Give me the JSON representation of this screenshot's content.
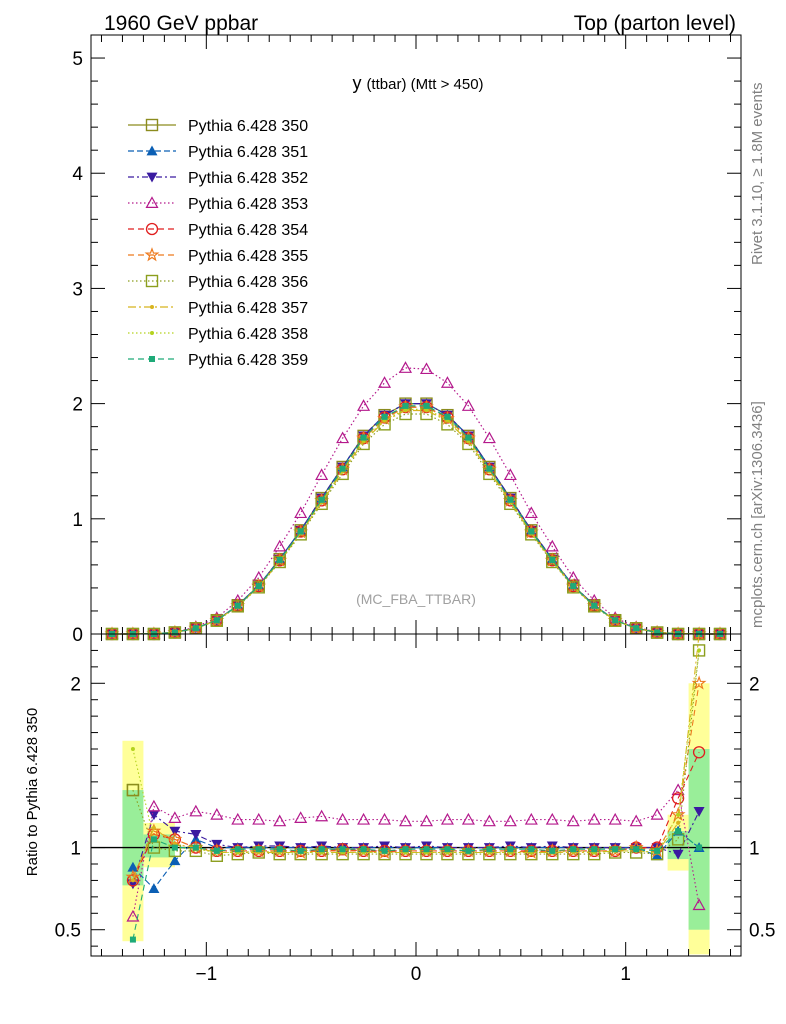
{
  "header": {
    "left": "1960 GeV ppbar",
    "right": "Top (parton level)"
  },
  "side_text": {
    "rivet": "Rivet 3.1.10, ≥ 1.8M events",
    "mcplots": "mcplots.cern.ch [arXiv:1306.3436]"
  },
  "chart_data": [
    {
      "type": "line",
      "title": "y (ttbar) (Mtt > 450)",
      "title_main": "y",
      "title_sub": "(ttbar) (Mtt > 450)",
      "watermark": "(MC_FBA_TTBAR)",
      "xlim": [
        -1.55,
        1.55
      ],
      "ylim": [
        0,
        5.2
      ],
      "y_ticks": [
        "0",
        "1",
        "2",
        "3",
        "4",
        "5"
      ],
      "x": [
        -1.45,
        -1.35,
        -1.25,
        -1.15,
        -1.05,
        -0.95,
        -0.85,
        -0.75,
        -0.65,
        -0.55,
        -0.45,
        -0.35,
        -0.25,
        -0.15,
        -0.05,
        0.05,
        0.15,
        0.25,
        0.35,
        0.45,
        0.55,
        0.65,
        0.75,
        0.85,
        0.95,
        1.05,
        1.15,
        1.25,
        1.35,
        1.45
      ],
      "series": [
        {
          "name": "Pythia 6.428 350",
          "color": "#8c8c1e",
          "dash": "",
          "marker": "square-open",
          "values": [
            0,
            0,
            0.003,
            0.013,
            0.05,
            0.12,
            0.25,
            0.42,
            0.65,
            0.9,
            1.18,
            1.45,
            1.72,
            1.9,
            2.0,
            2.0,
            1.9,
            1.72,
            1.45,
            1.18,
            0.9,
            0.65,
            0.42,
            0.25,
            0.12,
            0.05,
            0.013,
            0.003,
            0,
            0
          ]
        },
        {
          "name": "Pythia 6.428 351",
          "color": "#0b5fb4",
          "dash": "6,3",
          "marker": "triangle-up",
          "values": [
            0.001,
            0,
            0.002,
            0.012,
            0.052,
            0.12,
            0.25,
            0.42,
            0.65,
            0.9,
            1.18,
            1.45,
            1.72,
            1.9,
            2.0,
            2.0,
            1.9,
            1.72,
            1.45,
            1.18,
            0.9,
            0.65,
            0.42,
            0.25,
            0.12,
            0.05,
            0.012,
            0.004,
            0,
            0.001
          ]
        },
        {
          "name": "Pythia 6.428 352",
          "color": "#3a1aa0",
          "dash": "6,3,2,3",
          "marker": "triangle-down",
          "values": [
            0.002,
            0,
            0.003,
            0.014,
            0.054,
            0.12,
            0.25,
            0.42,
            0.65,
            0.9,
            1.18,
            1.45,
            1.72,
            1.9,
            2.0,
            2.0,
            1.9,
            1.72,
            1.45,
            1.18,
            0.9,
            0.65,
            0.42,
            0.25,
            0.12,
            0.05,
            0.012,
            0.003,
            0,
            0
          ]
        },
        {
          "name": "Pythia 6.428 353",
          "color": "#b4198c",
          "dash": "1.5,2.5",
          "marker": "triangle-open",
          "values": [
            0,
            0,
            0.004,
            0.015,
            0.062,
            0.14,
            0.29,
            0.49,
            0.76,
            1.05,
            1.38,
            1.7,
            1.98,
            2.18,
            2.31,
            2.3,
            2.18,
            1.98,
            1.7,
            1.38,
            1.05,
            0.76,
            0.49,
            0.29,
            0.14,
            0.06,
            0.016,
            0.004,
            0,
            0
          ]
        },
        {
          "name": "Pythia 6.428 354",
          "color": "#e01e1e",
          "dash": "6,4",
          "marker": "circle-open",
          "values": [
            0,
            0,
            0.003,
            0.013,
            0.05,
            0.12,
            0.245,
            0.415,
            0.64,
            0.89,
            1.16,
            1.43,
            1.7,
            1.88,
            1.97,
            1.97,
            1.88,
            1.7,
            1.43,
            1.16,
            0.89,
            0.64,
            0.415,
            0.245,
            0.12,
            0.05,
            0.013,
            0.004,
            0,
            0
          ]
        },
        {
          "name": "Pythia 6.428 355",
          "color": "#ee7a1e",
          "dash": "6,4",
          "marker": "star-open",
          "values": [
            0,
            0,
            0.003,
            0.013,
            0.05,
            0.118,
            0.245,
            0.415,
            0.64,
            0.885,
            1.16,
            1.43,
            1.7,
            1.87,
            1.97,
            1.97,
            1.87,
            1.7,
            1.43,
            1.16,
            0.885,
            0.64,
            0.415,
            0.245,
            0.118,
            0.05,
            0.013,
            0.004,
            0,
            0
          ]
        },
        {
          "name": "Pythia 6.428 356",
          "color": "#8c9e1e",
          "dash": "1.5,2.5",
          "marker": "square-open",
          "values": [
            0,
            0,
            0.003,
            0.013,
            0.049,
            0.115,
            0.24,
            0.405,
            0.625,
            0.865,
            1.13,
            1.39,
            1.65,
            1.82,
            1.91,
            1.91,
            1.82,
            1.65,
            1.39,
            1.13,
            0.865,
            0.625,
            0.405,
            0.24,
            0.115,
            0.049,
            0.012,
            0.003,
            0,
            0
          ]
        },
        {
          "name": "Pythia 6.428 357",
          "color": "#d8b41e",
          "dash": "8,3,2,3",
          "marker": "dot",
          "values": [
            0,
            0,
            0.003,
            0.013,
            0.05,
            0.118,
            0.242,
            0.41,
            0.632,
            0.875,
            1.145,
            1.41,
            1.67,
            1.85,
            1.94,
            1.94,
            1.85,
            1.67,
            1.41,
            1.145,
            0.875,
            0.632,
            0.41,
            0.242,
            0.118,
            0.05,
            0.013,
            0.004,
            0,
            0
          ]
        },
        {
          "name": "Pythia 6.428 358",
          "color": "#b4d21e",
          "dash": "1.5,2.5",
          "marker": "dot",
          "values": [
            0,
            0,
            0.003,
            0.013,
            0.05,
            0.118,
            0.243,
            0.412,
            0.635,
            0.88,
            1.15,
            1.42,
            1.68,
            1.86,
            1.95,
            1.95,
            1.86,
            1.68,
            1.42,
            1.15,
            0.88,
            0.635,
            0.412,
            0.243,
            0.118,
            0.05,
            0.013,
            0.004,
            0,
            0
          ]
        },
        {
          "name": "Pythia 6.428 359",
          "color": "#1eaa78",
          "dash": "6,4",
          "marker": "square",
          "values": [
            0,
            0,
            0.003,
            0.013,
            0.05,
            0.119,
            0.246,
            0.416,
            0.642,
            0.89,
            1.165,
            1.435,
            1.705,
            1.885,
            1.98,
            1.98,
            1.885,
            1.705,
            1.435,
            1.165,
            0.89,
            0.642,
            0.416,
            0.246,
            0.119,
            0.05,
            0.013,
            0.003,
            0,
            0
          ]
        }
      ]
    },
    {
      "type": "line",
      "ylabel": "Ratio to Pythia 6.428 350",
      "xlim": [
        -1.55,
        1.55
      ],
      "ylim": [
        0.34,
        2.3
      ],
      "x_ticks": [
        "−1",
        "0",
        "1"
      ],
      "y_ticks": [
        "0.5",
        "1",
        "2"
      ],
      "band_x": [
        -1.4,
        -1.3,
        1.3,
        1.4
      ],
      "band_yellow": [
        [
          0.43,
          1.65
        ],
        [
          1.0,
          1.0
        ],
        [
          0.35,
          2.0
        ]
      ],
      "band_green": [
        [
          0.77,
          1.35
        ],
        [
          1.0,
          1.0
        ],
        [
          0.5,
          1.6
        ]
      ],
      "x": [
        -1.35,
        -1.25,
        -1.15,
        -1.05,
        -0.95,
        -0.85,
        -0.75,
        -0.65,
        -0.55,
        -0.45,
        -0.35,
        -0.25,
        -0.15,
        -0.05,
        0.05,
        0.15,
        0.25,
        0.35,
        0.45,
        0.55,
        0.65,
        0.75,
        0.85,
        0.95,
        1.05,
        1.15,
        1.25,
        1.35
      ],
      "series": [
        {
          "name": "Pythia 6.428 351",
          "values": [
            0.88,
            0.75,
            0.92,
            1.05,
            1.0,
            1.0,
            1.0,
            1.0,
            1.0,
            1.0,
            1.0,
            1.0,
            1.0,
            1.0,
            1.0,
            1.0,
            1.0,
            1.0,
            1.0,
            1.0,
            1.0,
            1.0,
            1.0,
            1.0,
            1.0,
            0.95,
            1.1,
            1.0
          ]
        },
        {
          "name": "Pythia 6.428 352",
          "values": [
            0.78,
            1.2,
            1.1,
            1.08,
            1.02,
            1.0,
            1.01,
            1.01,
            1.0,
            1.01,
            1.0,
            1.0,
            1.01,
            1.0,
            1.01,
            1.0,
            1.0,
            1.0,
            1.01,
            1.0,
            1.01,
            1.0,
            1.0,
            1.0,
            1.0,
            1.0,
            0.96,
            1.22
          ]
        },
        {
          "name": "Pythia 6.428 353",
          "values": [
            0.58,
            1.25,
            1.18,
            1.22,
            1.2,
            1.17,
            1.17,
            1.16,
            1.18,
            1.19,
            1.17,
            1.17,
            1.17,
            1.16,
            1.16,
            1.17,
            1.17,
            1.16,
            1.16,
            1.17,
            1.17,
            1.16,
            1.17,
            1.17,
            1.16,
            1.2,
            1.35,
            0.65
          ]
        },
        {
          "name": "Pythia 6.428 354",
          "values": [
            0.8,
            1.08,
            1.05,
            1.0,
            0.98,
            0.98,
            0.98,
            0.98,
            0.98,
            0.98,
            0.99,
            0.98,
            0.98,
            0.98,
            0.98,
            0.98,
            0.98,
            0.98,
            0.98,
            0.98,
            0.98,
            0.98,
            0.98,
            0.98,
            1.0,
            1.0,
            1.3,
            1.58
          ]
        },
        {
          "name": "Pythia 6.428 355",
          "values": [
            0.82,
            1.1,
            1.05,
            1.0,
            0.98,
            0.98,
            0.98,
            0.98,
            0.97,
            0.98,
            0.98,
            0.98,
            0.97,
            0.98,
            0.98,
            0.98,
            0.98,
            0.98,
            0.98,
            0.97,
            0.98,
            0.98,
            0.98,
            0.98,
            1.0,
            0.98,
            1.2,
            2.0
          ]
        },
        {
          "name": "Pythia 6.428 356",
          "values": [
            1.35,
            1.0,
            0.98,
            0.98,
            0.95,
            0.96,
            0.97,
            0.96,
            0.96,
            0.96,
            0.96,
            0.96,
            0.96,
            0.96,
            0.96,
            0.96,
            0.96,
            0.96,
            0.96,
            0.96,
            0.96,
            0.96,
            0.96,
            0.97,
            0.97,
            0.96,
            1.05,
            2.2
          ]
        },
        {
          "name": "Pythia 6.428 357",
          "values": [
            0.8,
            1.12,
            1.02,
            1.0,
            0.97,
            0.97,
            0.97,
            0.97,
            0.97,
            0.97,
            0.97,
            0.97,
            0.97,
            0.97,
            0.97,
            0.97,
            0.97,
            0.97,
            0.97,
            0.97,
            0.97,
            0.97,
            0.97,
            0.98,
            0.98,
            0.97,
            1.15,
            2.3
          ]
        },
        {
          "name": "Pythia 6.428 358",
          "values": [
            1.6,
            1.05,
            1.0,
            0.99,
            0.97,
            0.97,
            0.98,
            0.97,
            0.97,
            0.97,
            0.97,
            0.97,
            0.97,
            0.97,
            0.97,
            0.97,
            0.97,
            0.97,
            0.97,
            0.97,
            0.97,
            0.98,
            0.97,
            0.98,
            0.98,
            0.97,
            1.2,
            2.2
          ]
        },
        {
          "name": "Pythia 6.428 359",
          "values": [
            0.44,
            1.05,
            1.0,
            1.0,
            0.98,
            0.99,
            0.99,
            0.99,
            0.98,
            0.99,
            0.99,
            0.99,
            0.98,
            0.99,
            0.99,
            0.99,
            0.98,
            0.99,
            0.99,
            0.99,
            0.98,
            0.99,
            0.99,
            0.99,
            0.99,
            0.98,
            1.1,
            1.0
          ]
        }
      ]
    }
  ]
}
